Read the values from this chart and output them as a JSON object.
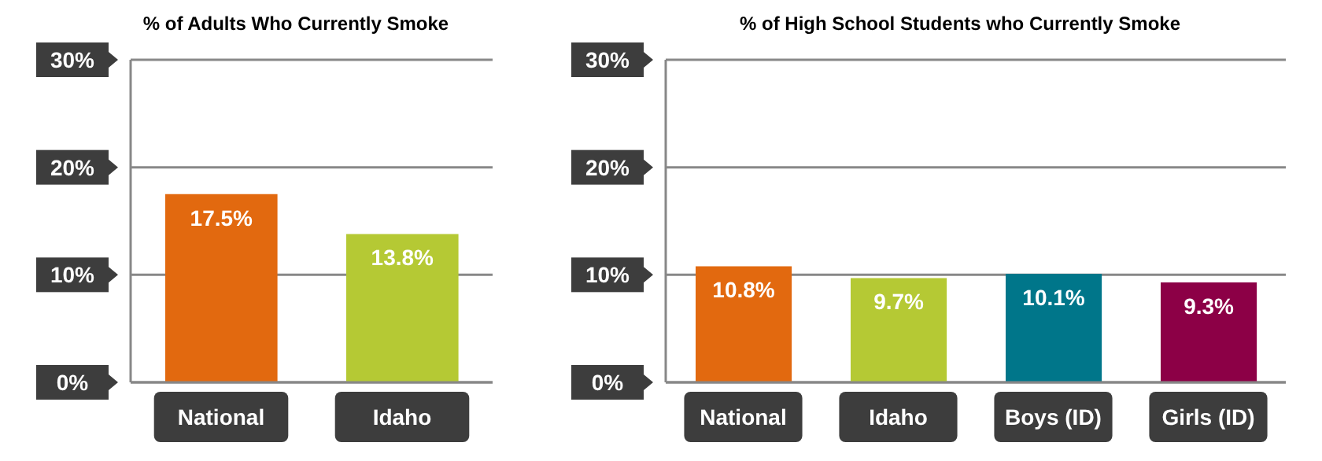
{
  "chart_data": [
    {
      "type": "bar",
      "title": "% of Adults Who Currently Smoke",
      "categories": [
        "National",
        "Idaho"
      ],
      "values": [
        17.5,
        13.8
      ],
      "colors": [
        "#e2690f",
        "#b5c934"
      ],
      "value_labels": [
        "17.5%",
        "13.8%"
      ],
      "ylim": [
        0,
        30
      ],
      "yticks": [
        {
          "value": 0,
          "label": "0%"
        },
        {
          "value": 10,
          "label": "10%"
        },
        {
          "value": 20,
          "label": "20%"
        },
        {
          "value": 30,
          "label": "30%"
        }
      ],
      "grid": "y"
    },
    {
      "type": "bar",
      "title": "% of High School Students who Currently Smoke",
      "categories": [
        "National",
        "Idaho",
        "Boys (ID)",
        "Girls (ID)"
      ],
      "values": [
        10.8,
        9.7,
        10.1,
        9.3
      ],
      "colors": [
        "#e2690f",
        "#b5c934",
        "#00768a",
        "#8c0046"
      ],
      "value_labels": [
        "10.8%",
        "9.7%",
        "10.1%",
        "9.3%"
      ],
      "ylim": [
        0,
        30
      ],
      "yticks": [
        {
          "value": 0,
          "label": "0%"
        },
        {
          "value": 10,
          "label": "10%"
        },
        {
          "value": 20,
          "label": "20%"
        },
        {
          "value": 30,
          "label": "30%"
        }
      ],
      "grid": "y"
    }
  ]
}
